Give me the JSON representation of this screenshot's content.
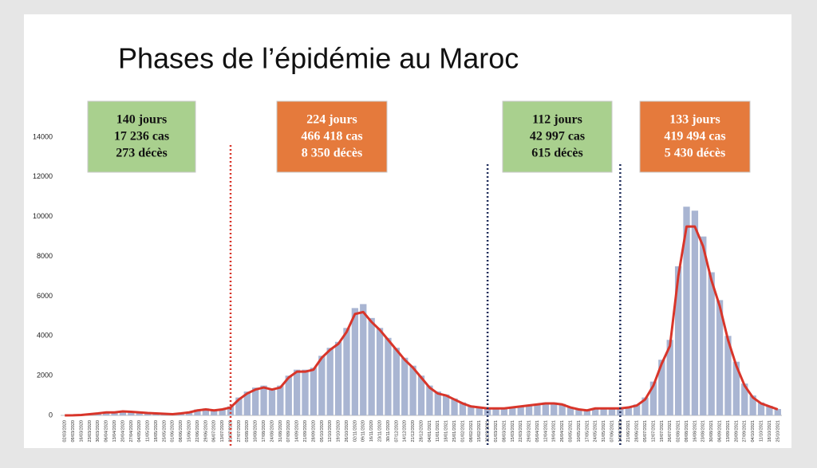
{
  "chart_data": {
    "type": "bar",
    "title": "Phases de l’épidémie au Maroc",
    "categories": [
      "02/03/2020",
      "09/03/2020",
      "16/03/2020",
      "23/03/2020",
      "30/03/2020",
      "06/04/2020",
      "13/04/2020",
      "20/04/2020",
      "27/04/2020",
      "04/05/2020",
      "11/05/2020",
      "18/05/2020",
      "25/05/2020",
      "01/06/2020",
      "08/06/2020",
      "15/06/2020",
      "22/06/2020",
      "29/06/2020",
      "06/07/2020",
      "13/07/2020",
      "20/07/2020",
      "27/07/2020",
      "03/08/2020",
      "10/08/2020",
      "17/08/2020",
      "24/08/2020",
      "31/08/2020",
      "07/09/2020",
      "14/09/2020",
      "21/09/2020",
      "28/09/2020",
      "05/10/2020",
      "12/10/2020",
      "19/10/2020",
      "26/10/2020",
      "02/11/2020",
      "09/11/2020",
      "16/11/2020",
      "23/11/2020",
      "30/11/2020",
      "07/12/2020",
      "14/12/2020",
      "21/12/2020",
      "28/12/2020",
      "04/01/2021",
      "11/01/2021",
      "18/01/2021",
      "25/01/2021",
      "01/02/2021",
      "08/02/2021",
      "15/02/2021",
      "22/02/2021",
      "01/03/2021",
      "08/03/2021",
      "15/03/2021",
      "22/03/2021",
      "29/03/2021",
      "05/04/2021",
      "12/04/2021",
      "19/04/2021",
      "26/04/2021",
      "03/05/2021",
      "10/05/2021",
      "17/05/2021",
      "24/05/2021",
      "31/05/2021",
      "07/06/2021",
      "14/06/2021",
      "21/06/2021",
      "28/06/2021",
      "05/07/2021",
      "12/07/2021",
      "19/07/2021",
      "26/07/2021",
      "02/08/2021",
      "09/08/2021",
      "16/08/2021",
      "23/08/2021",
      "30/08/2021",
      "06/09/2021",
      "13/09/2021",
      "20/09/2021",
      "27/09/2021",
      "04/10/2021",
      "11/10/2021",
      "18/10/2021",
      "25/10/2021"
    ],
    "series": [
      {
        "type": "bar",
        "color": "#a9b5d2",
        "values": [
          0,
          10,
          30,
          80,
          120,
          170,
          160,
          220,
          190,
          160,
          130,
          110,
          90,
          70,
          120,
          180,
          300,
          350,
          280,
          320,
          450,
          900,
          1200,
          1400,
          1500,
          1350,
          1500,
          2000,
          2300,
          2300,
          2400,
          3000,
          3400,
          3700,
          4400,
          5400,
          5600,
          4900,
          4400,
          3900,
          3400,
          2900,
          2500,
          2000,
          1500,
          1200,
          1050,
          850,
          650,
          500,
          420,
          380,
          380,
          380,
          420,
          480,
          530,
          580,
          650,
          650,
          580,
          420,
          320,
          280,
          370,
          380,
          380,
          380,
          430,
          550,
          900,
          1700,
          2800,
          3800,
          7500,
          10500,
          10300,
          9000,
          7200,
          5800,
          4000,
          2700,
          1600,
          1000,
          650,
          480,
          320
        ]
      },
      {
        "type": "line",
        "color": "#d8352a",
        "values": [
          0,
          5,
          20,
          60,
          100,
          150,
          150,
          200,
          180,
          150,
          120,
          100,
          80,
          60,
          100,
          150,
          250,
          300,
          250,
          300,
          400,
          800,
          1100,
          1300,
          1400,
          1300,
          1400,
          1900,
          2200,
          2200,
          2300,
          2900,
          3300,
          3600,
          4200,
          5100,
          5200,
          4700,
          4300,
          3800,
          3300,
          2800,
          2400,
          1900,
          1400,
          1100,
          1000,
          800,
          600,
          450,
          400,
          350,
          350,
          350,
          400,
          450,
          500,
          550,
          600,
          600,
          550,
          400,
          300,
          250,
          350,
          350,
          350,
          350,
          400,
          500,
          800,
          1500,
          2600,
          3500,
          7000,
          9500,
          9500,
          8500,
          6800,
          5500,
          3800,
          2500,
          1500,
          900,
          600,
          450,
          300
        ]
      }
    ],
    "ylim": [
      0,
      14000
    ],
    "yticks": [
      0,
      2000,
      4000,
      6000,
      8000,
      10000,
      12000,
      14000
    ],
    "dividers": [
      {
        "x": "20/07/2020",
        "color": "#d8352a"
      },
      {
        "x": "22/02/2021",
        "color": "#1d2b5a"
      },
      {
        "x": "14/06/2021",
        "color": "#1d2b5a"
      }
    ],
    "annotations": [
      {
        "lines": [
          "140 jours",
          "17 236 cas",
          "273 décès"
        ],
        "color": "#a9d08e",
        "text_color": "#111111"
      },
      {
        "lines": [
          "224 jours",
          "466 418 cas",
          "8 350 décès"
        ],
        "color": "#e57a3c",
        "text_color": "#ffffff"
      },
      {
        "lines": [
          "112 jours",
          "42 997 cas",
          "615 décès"
        ],
        "color": "#a9d08e",
        "text_color": "#111111"
      },
      {
        "lines": [
          "133 jours",
          "419 494 cas",
          "5  430 décès"
        ],
        "color": "#e57a3c",
        "text_color": "#ffffff"
      }
    ]
  }
}
